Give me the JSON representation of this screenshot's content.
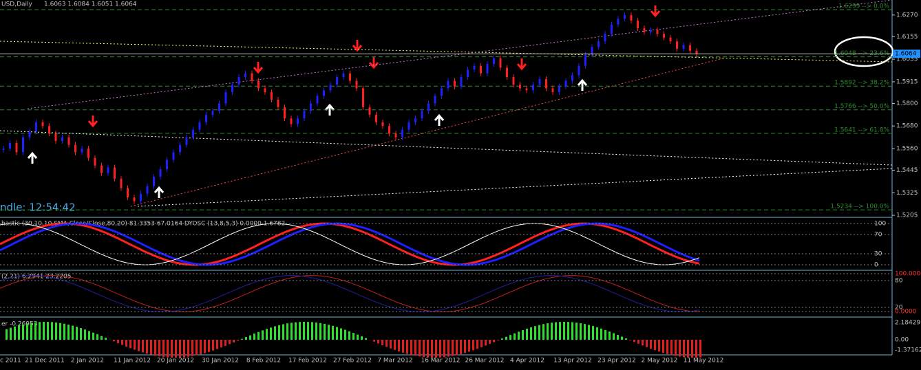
{
  "header": {
    "symbol": "USD,Daily",
    "ohlc": "1.6063 1.6084 1.6051 1.6064",
    "candle_timer": "ndle:  12:54:42",
    "current_price": "1.6064"
  },
  "chart_data": {
    "type": "candlestick",
    "closes": [
      1.556,
      1.559,
      1.554,
      1.562,
      1.565,
      1.57,
      1.568,
      1.564,
      1.56,
      1.562,
      1.558,
      1.554,
      1.556,
      1.551,
      1.547,
      1.543,
      1.546,
      1.54,
      1.535,
      1.53,
      1.528,
      1.532,
      1.536,
      1.541,
      1.545,
      1.55,
      1.554,
      1.558,
      1.562,
      1.566,
      1.57,
      1.574,
      1.576,
      1.58,
      1.586,
      1.59,
      1.594,
      1.596,
      1.592,
      1.588,
      1.586,
      1.582,
      1.578,
      1.572,
      1.569,
      1.572,
      1.576,
      1.58,
      1.584,
      1.587,
      1.59,
      1.594,
      1.596,
      1.592,
      1.588,
      1.578,
      1.574,
      1.57,
      1.568,
      1.564,
      1.562,
      1.566,
      1.57,
      1.572,
      1.576,
      1.58,
      1.584,
      1.588,
      1.592,
      1.589,
      1.594,
      1.598,
      1.6,
      1.596,
      1.601,
      1.604,
      1.599,
      1.594,
      1.59,
      1.588,
      1.587,
      1.59,
      1.593,
      1.588,
      1.586,
      1.589,
      1.592,
      1.595,
      1.6,
      1.606,
      1.61,
      1.613,
      1.617,
      1.622,
      1.625,
      1.627,
      1.624,
      1.62,
      1.618,
      1.619,
      1.617,
      1.615,
      1.613,
      1.609,
      1.611,
      1.608,
      1.6064
    ],
    "up_color": "#2020ff",
    "down_color": "#ff2020",
    "ylim": [
      1.5198,
      1.635
    ],
    "yticks": [
      {
        "value": 1.627,
        "label": "1.6270"
      },
      {
        "value": 1.6155,
        "label": "1.6155"
      },
      {
        "value": 1.6035,
        "label": "1.6035"
      },
      {
        "value": 1.5915,
        "label": "1.5915"
      },
      {
        "value": 1.58,
        "label": "1.5800"
      },
      {
        "value": 1.568,
        "label": "1.5680"
      },
      {
        "value": 1.556,
        "label": "1.5560"
      },
      {
        "value": 1.5445,
        "label": "1.5445"
      },
      {
        "value": 1.5325,
        "label": "1.5325"
      },
      {
        "value": 1.5205,
        "label": "1.5205"
      }
    ],
    "fib_levels": [
      {
        "value": 1.6299,
        "label": "1.6299 --> 0.0%"
      },
      {
        "value": 1.6048,
        "label": "1.6048 --> 23.6%"
      },
      {
        "value": 1.5892,
        "label": "1.5892 --> 38.2%"
      },
      {
        "value": 1.5766,
        "label": "1.5766 --> 50.0%"
      },
      {
        "value": 1.5641,
        "label": "1.5641 --> 61.8%"
      },
      {
        "value": 1.5234,
        "label": "1.5234 --> 100.0%"
      }
    ],
    "x_labels": [
      "c 2011",
      "21 Dec 2011",
      "2 Jan 2012",
      "11 Jan 2012",
      "20 Jan 2012",
      "30 Jan 2012",
      "8 Feb 2012",
      "17 Feb 2012",
      "27 Feb 2012",
      "7 Mar 2012",
      "16 Mar 2012",
      "26 Mar 2012",
      "4 Apr 2012",
      "13 Apr 2012",
      "23 Apr 2012",
      "2 May 2012",
      "11 May 2012"
    ]
  },
  "indicators": {
    "stochastic": {
      "label": "hastic (30,10,10,SMA,Close/Close,80,20) 81.3353 67.0164  DYOSC (13,8,5,3) 0.0000 1.6782",
      "ticks": [
        "100",
        "70",
        "30",
        "0"
      ]
    },
    "oscillator": {
      "label": "(2,21) 6.2941 23.2205",
      "ticks": [
        "100.0000",
        "80",
        "20",
        "0.0000"
      ]
    },
    "histogram": {
      "label": "er -0.26953",
      "ticks": [
        "2.18429",
        "0.00",
        "-1.37162"
      ]
    }
  }
}
